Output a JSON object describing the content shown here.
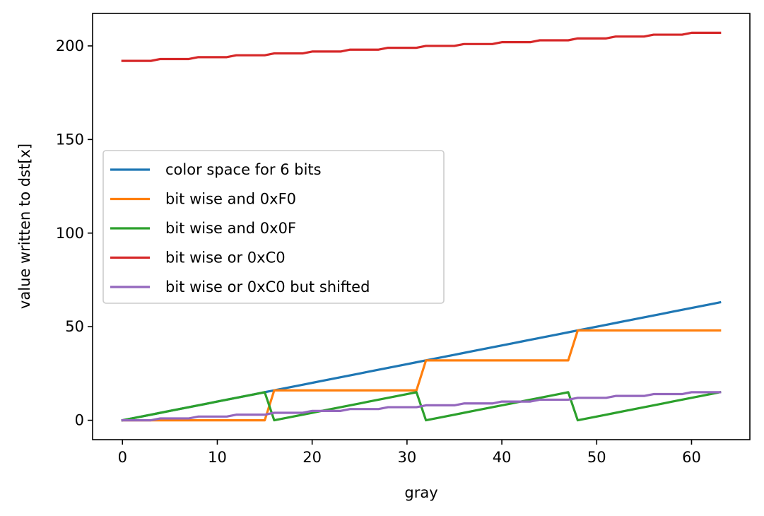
{
  "chart_data": {
    "type": "line",
    "xlabel": "gray",
    "ylabel": "value written to dst[x]",
    "xlim": [
      -3.15,
      66.15
    ],
    "ylim": [
      -10.35,
      217.35
    ],
    "x_ticks": [
      0,
      10,
      20,
      30,
      40,
      50,
      60
    ],
    "y_ticks": [
      0,
      50,
      100,
      150,
      200
    ],
    "grid": false,
    "legend_position": "center-left",
    "x_formula": "x = 0..63",
    "series": [
      {
        "name": "color space for 6 bits",
        "color": "#1f77b4",
        "formula": "y = x"
      },
      {
        "name": "bit wise and 0xF0",
        "color": "#ff7f0e",
        "formula": "y = x & 0xF0"
      },
      {
        "name": "bit wise and 0x0F",
        "color": "#2ca02c",
        "formula": "y = x & 0x0F"
      },
      {
        "name": "bit wise or 0xC0",
        "color": "#d62728",
        "formula": "y = (x >> 2) | 0xC0"
      },
      {
        "name": "bit wise or 0xC0 but shifted",
        "color": "#9467bd",
        "formula": "y = x >> 2"
      }
    ],
    "values": {
      "x": [
        0,
        1,
        2,
        3,
        4,
        5,
        6,
        7,
        8,
        9,
        10,
        11,
        12,
        13,
        14,
        15,
        16,
        17,
        18,
        19,
        20,
        21,
        22,
        23,
        24,
        25,
        26,
        27,
        28,
        29,
        30,
        31,
        32,
        33,
        34,
        35,
        36,
        37,
        38,
        39,
        40,
        41,
        42,
        43,
        44,
        45,
        46,
        47,
        48,
        49,
        50,
        51,
        52,
        53,
        54,
        55,
        56,
        57,
        58,
        59,
        60,
        61,
        62,
        63
      ],
      "color space for 6 bits": [
        0,
        1,
        2,
        3,
        4,
        5,
        6,
        7,
        8,
        9,
        10,
        11,
        12,
        13,
        14,
        15,
        16,
        17,
        18,
        19,
        20,
        21,
        22,
        23,
        24,
        25,
        26,
        27,
        28,
        29,
        30,
        31,
        32,
        33,
        34,
        35,
        36,
        37,
        38,
        39,
        40,
        41,
        42,
        43,
        44,
        45,
        46,
        47,
        48,
        49,
        50,
        51,
        52,
        53,
        54,
        55,
        56,
        57,
        58,
        59,
        60,
        61,
        62,
        63
      ],
      "bit wise and 0xF0": [
        0,
        0,
        0,
        0,
        0,
        0,
        0,
        0,
        0,
        0,
        0,
        0,
        0,
        0,
        0,
        0,
        16,
        16,
        16,
        16,
        16,
        16,
        16,
        16,
        16,
        16,
        16,
        16,
        16,
        16,
        16,
        16,
        32,
        32,
        32,
        32,
        32,
        32,
        32,
        32,
        32,
        32,
        32,
        32,
        32,
        32,
        32,
        32,
        48,
        48,
        48,
        48,
        48,
        48,
        48,
        48,
        48,
        48,
        48,
        48,
        48,
        48,
        48,
        48
      ],
      "bit wise and 0x0F": [
        0,
        1,
        2,
        3,
        4,
        5,
        6,
        7,
        8,
        9,
        10,
        11,
        12,
        13,
        14,
        15,
        0,
        1,
        2,
        3,
        4,
        5,
        6,
        7,
        8,
        9,
        10,
        11,
        12,
        13,
        14,
        15,
        0,
        1,
        2,
        3,
        4,
        5,
        6,
        7,
        8,
        9,
        10,
        11,
        12,
        13,
        14,
        15,
        0,
        1,
        2,
        3,
        4,
        5,
        6,
        7,
        8,
        9,
        10,
        11,
        12,
        13,
        14,
        15
      ],
      "bit wise or 0xC0": [
        192,
        192,
        192,
        192,
        193,
        193,
        193,
        193,
        194,
        194,
        194,
        194,
        195,
        195,
        195,
        195,
        196,
        196,
        196,
        196,
        197,
        197,
        197,
        197,
        198,
        198,
        198,
        198,
        199,
        199,
        199,
        199,
        200,
        200,
        200,
        200,
        201,
        201,
        201,
        201,
        202,
        202,
        202,
        202,
        203,
        203,
        203,
        203,
        204,
        204,
        204,
        204,
        205,
        205,
        205,
        205,
        206,
        206,
        206,
        206,
        207,
        207,
        207,
        207
      ],
      "bit wise or 0xC0 but shifted": [
        0,
        0,
        0,
        0,
        1,
        1,
        1,
        1,
        2,
        2,
        2,
        2,
        3,
        3,
        3,
        3,
        4,
        4,
        4,
        4,
        5,
        5,
        5,
        5,
        6,
        6,
        6,
        6,
        7,
        7,
        7,
        7,
        8,
        8,
        8,
        8,
        9,
        9,
        9,
        9,
        10,
        10,
        10,
        10,
        11,
        11,
        11,
        11,
        12,
        12,
        12,
        12,
        13,
        13,
        13,
        13,
        14,
        14,
        14,
        14,
        15,
        15,
        15,
        15
      ]
    }
  }
}
